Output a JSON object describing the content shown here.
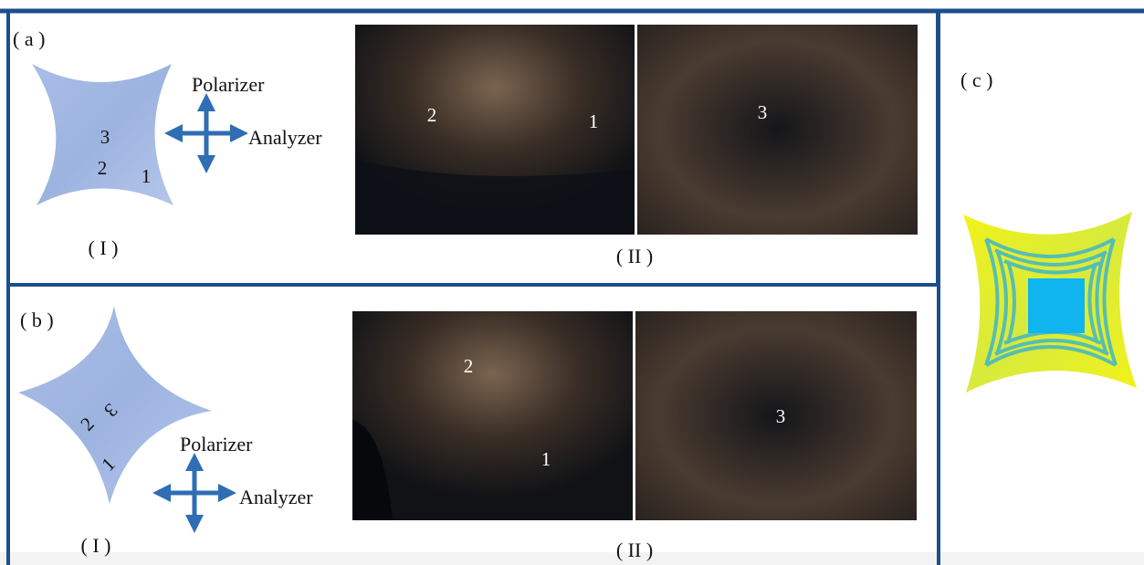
{
  "panel_a": {
    "label": "( a )",
    "part_I": {
      "label": "( I )",
      "star_labels": [
        "3",
        "2",
        "1"
      ],
      "polarizer": "Polarizer",
      "analyzer": "Analyzer"
    },
    "part_II": {
      "label": "( II )",
      "image_labels": [
        "2",
        "1",
        "3"
      ]
    }
  },
  "panel_b": {
    "label": "( b )",
    "part_I": {
      "label": "( I )",
      "star_labels": [
        "3",
        "2",
        "1"
      ],
      "polarizer": "Polarizer",
      "analyzer": "Analyzer"
    },
    "part_II": {
      "label": "( II )",
      "image_labels": [
        "2",
        "1",
        "3"
      ]
    }
  },
  "panel_c": {
    "label": "( c )"
  }
}
